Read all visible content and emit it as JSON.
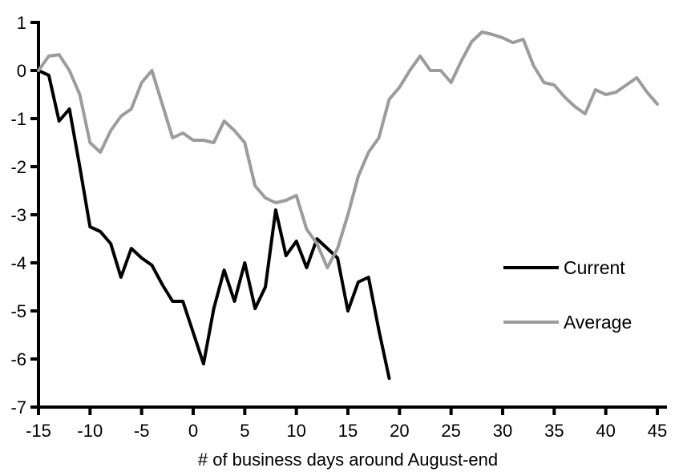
{
  "chart_data": {
    "type": "line",
    "title": "",
    "xlabel": "# of business days around August-end",
    "ylabel": "",
    "xlim": [
      -15,
      45
    ],
    "ylim": [
      -7,
      1
    ],
    "xticks": [
      -15,
      -10,
      -5,
      0,
      5,
      10,
      15,
      20,
      25,
      30,
      35,
      40,
      45
    ],
    "yticks": [
      1,
      0,
      -1,
      -2,
      -3,
      -4,
      -5,
      -6,
      -7
    ],
    "grid": "off",
    "legend_position": "right-middle",
    "axis_color": "#000000",
    "series": [
      {
        "name": "Current",
        "color": "#000000",
        "x": [
          -15,
          -14,
          -13,
          -12,
          -11,
          -10,
          -9,
          -8,
          -7,
          -6,
          -5,
          -4,
          -3,
          -2,
          -1,
          0,
          1,
          2,
          3,
          4,
          5,
          6,
          7,
          8,
          9,
          10,
          11,
          12,
          13,
          14,
          15,
          16,
          17,
          18,
          19
        ],
        "values": [
          0,
          -0.1,
          -1.05,
          -0.8,
          -2.0,
          -3.25,
          -3.35,
          -3.6,
          -4.3,
          -3.7,
          -3.9,
          -4.05,
          -4.45,
          -4.8,
          -4.8,
          -5.45,
          -6.1,
          -4.95,
          -4.15,
          -4.8,
          -4.0,
          -4.95,
          -4.5,
          -2.9,
          -3.85,
          -3.55,
          -4.1,
          -3.5,
          -3.7,
          -3.9,
          -5.0,
          -4.4,
          -4.3,
          -5.4,
          -6.4
        ]
      },
      {
        "name": "Average",
        "color": "#9c9c9c",
        "x": [
          -15,
          -14,
          -13,
          -12,
          -11,
          -10,
          -9,
          -8,
          -7,
          -6,
          -5,
          -4,
          -3,
          -2,
          -1,
          0,
          1,
          2,
          3,
          4,
          5,
          6,
          7,
          8,
          9,
          10,
          11,
          12,
          13,
          14,
          15,
          16,
          17,
          18,
          19,
          20,
          21,
          22,
          23,
          24,
          25,
          26,
          27,
          28,
          29,
          30,
          31,
          32,
          33,
          34,
          35,
          36,
          37,
          38,
          39,
          40,
          41,
          42,
          43,
          44,
          45
        ],
        "values": [
          0,
          0.3,
          0.33,
          0.0,
          -0.5,
          -1.5,
          -1.7,
          -1.25,
          -0.95,
          -0.8,
          -0.25,
          0.0,
          -0.7,
          -1.4,
          -1.3,
          -1.45,
          -1.45,
          -1.5,
          -1.05,
          -1.25,
          -1.5,
          -2.4,
          -2.65,
          -2.75,
          -2.7,
          -2.6,
          -3.3,
          -3.6,
          -4.1,
          -3.7,
          -3.0,
          -2.2,
          -1.7,
          -1.4,
          -0.6,
          -0.35,
          0.0,
          0.3,
          0.0,
          0.0,
          -0.25,
          0.2,
          0.6,
          0.8,
          0.75,
          0.68,
          0.58,
          0.65,
          0.1,
          -0.25,
          -0.3,
          -0.55,
          -0.75,
          -0.9,
          -0.4,
          -0.5,
          -0.45,
          -0.3,
          -0.15,
          -0.45,
          -0.7
        ]
      }
    ]
  }
}
